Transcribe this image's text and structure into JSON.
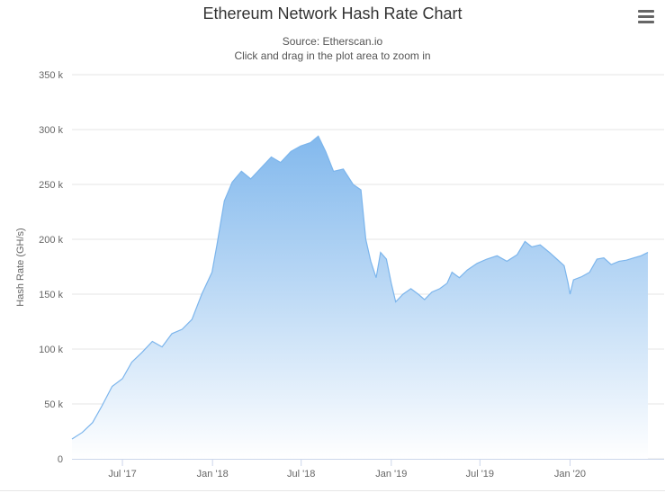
{
  "chart_data": {
    "type": "area",
    "title": "Ethereum Network Hash Rate Chart",
    "subtitle_lines": [
      "Source: Etherscan.io",
      "Click and drag in the plot area to zoom in"
    ],
    "ylabel": "Hash Rate (GH/s)",
    "xlabel": "",
    "ylim": [
      0,
      350000
    ],
    "xlim": [
      "2017-03-20",
      "2020-06-08"
    ],
    "y_ticks": [
      {
        "value": 0,
        "label": "0"
      },
      {
        "value": 50000,
        "label": "50 k"
      },
      {
        "value": 100000,
        "label": "100 k"
      },
      {
        "value": 150000,
        "label": "150 k"
      },
      {
        "value": 200000,
        "label": "200 k"
      },
      {
        "value": 250000,
        "label": "250 k"
      },
      {
        "value": 300000,
        "label": "300 k"
      },
      {
        "value": 350000,
        "label": "350 k"
      }
    ],
    "x_ticks": [
      {
        "date": "2017-07-01",
        "label": "Jul '17"
      },
      {
        "date": "2018-01-01",
        "label": "Jan '18"
      },
      {
        "date": "2018-07-01",
        "label": "Jul '18"
      },
      {
        "date": "2019-01-01",
        "label": "Jan '19"
      },
      {
        "date": "2019-07-01",
        "label": "Jul '19"
      },
      {
        "date": "2020-01-01",
        "label": "Jan '20"
      }
    ],
    "grid": true,
    "legend": "none",
    "colors": {
      "line": "#7cb5ec",
      "fill_top": "#7cb5ec",
      "fill_bottom": "#ffffff",
      "grid": "#e6e6e6",
      "axis": "#ccd6eb"
    },
    "series": [
      {
        "points": [
          [
            "2017-03-20",
            18000
          ],
          [
            "2017-04-10",
            24000
          ],
          [
            "2017-05-01",
            33000
          ],
          [
            "2017-05-20",
            48000
          ],
          [
            "2017-06-10",
            66000
          ],
          [
            "2017-07-01",
            73000
          ],
          [
            "2017-07-20",
            88000
          ],
          [
            "2017-08-10",
            97000
          ],
          [
            "2017-08-31",
            107000
          ],
          [
            "2017-09-20",
            102000
          ],
          [
            "2017-10-10",
            114000
          ],
          [
            "2017-10-31",
            118000
          ],
          [
            "2017-11-20",
            127000
          ],
          [
            "2017-12-10",
            150000
          ],
          [
            "2017-12-31",
            170000
          ],
          [
            "2018-01-10",
            195000
          ],
          [
            "2018-01-25",
            235000
          ],
          [
            "2018-02-10",
            252000
          ],
          [
            "2018-03-01",
            262000
          ],
          [
            "2018-03-20",
            255000
          ],
          [
            "2018-04-10",
            265000
          ],
          [
            "2018-05-01",
            275000
          ],
          [
            "2018-05-20",
            270000
          ],
          [
            "2018-06-10",
            280000
          ],
          [
            "2018-06-30",
            285000
          ],
          [
            "2018-07-20",
            288000
          ],
          [
            "2018-08-05",
            294000
          ],
          [
            "2018-08-20",
            280000
          ],
          [
            "2018-09-05",
            262000
          ],
          [
            "2018-09-25",
            264000
          ],
          [
            "2018-10-15",
            250000
          ],
          [
            "2018-10-31",
            245000
          ],
          [
            "2018-11-10",
            200000
          ],
          [
            "2018-11-20",
            180000
          ],
          [
            "2018-12-01",
            165000
          ],
          [
            "2018-12-10",
            188000
          ],
          [
            "2018-12-22",
            182000
          ],
          [
            "2019-01-01",
            160000
          ],
          [
            "2019-01-10",
            143000
          ],
          [
            "2019-01-25",
            150000
          ],
          [
            "2019-02-10",
            155000
          ],
          [
            "2019-02-25",
            150000
          ],
          [
            "2019-03-10",
            145000
          ],
          [
            "2019-03-25",
            152000
          ],
          [
            "2019-04-10",
            155000
          ],
          [
            "2019-04-25",
            160000
          ],
          [
            "2019-05-05",
            170000
          ],
          [
            "2019-05-20",
            165000
          ],
          [
            "2019-06-05",
            172000
          ],
          [
            "2019-06-25",
            178000
          ],
          [
            "2019-07-15",
            182000
          ],
          [
            "2019-08-05",
            185000
          ],
          [
            "2019-08-25",
            180000
          ],
          [
            "2019-09-15",
            186000
          ],
          [
            "2019-10-01",
            198000
          ],
          [
            "2019-10-15",
            193000
          ],
          [
            "2019-11-01",
            195000
          ],
          [
            "2019-11-20",
            188000
          ],
          [
            "2019-12-05",
            182000
          ],
          [
            "2019-12-20",
            176000
          ],
          [
            "2019-12-28",
            160000
          ],
          [
            "2020-01-01",
            150000
          ],
          [
            "2020-01-08",
            163000
          ],
          [
            "2020-01-25",
            166000
          ],
          [
            "2020-02-10",
            170000
          ],
          [
            "2020-02-25",
            182000
          ],
          [
            "2020-03-10",
            183000
          ],
          [
            "2020-03-25",
            177000
          ],
          [
            "2020-04-10",
            180000
          ],
          [
            "2020-04-25",
            181000
          ],
          [
            "2020-05-10",
            183000
          ],
          [
            "2020-05-25",
            185000
          ],
          [
            "2020-06-08",
            188000
          ]
        ]
      }
    ]
  }
}
